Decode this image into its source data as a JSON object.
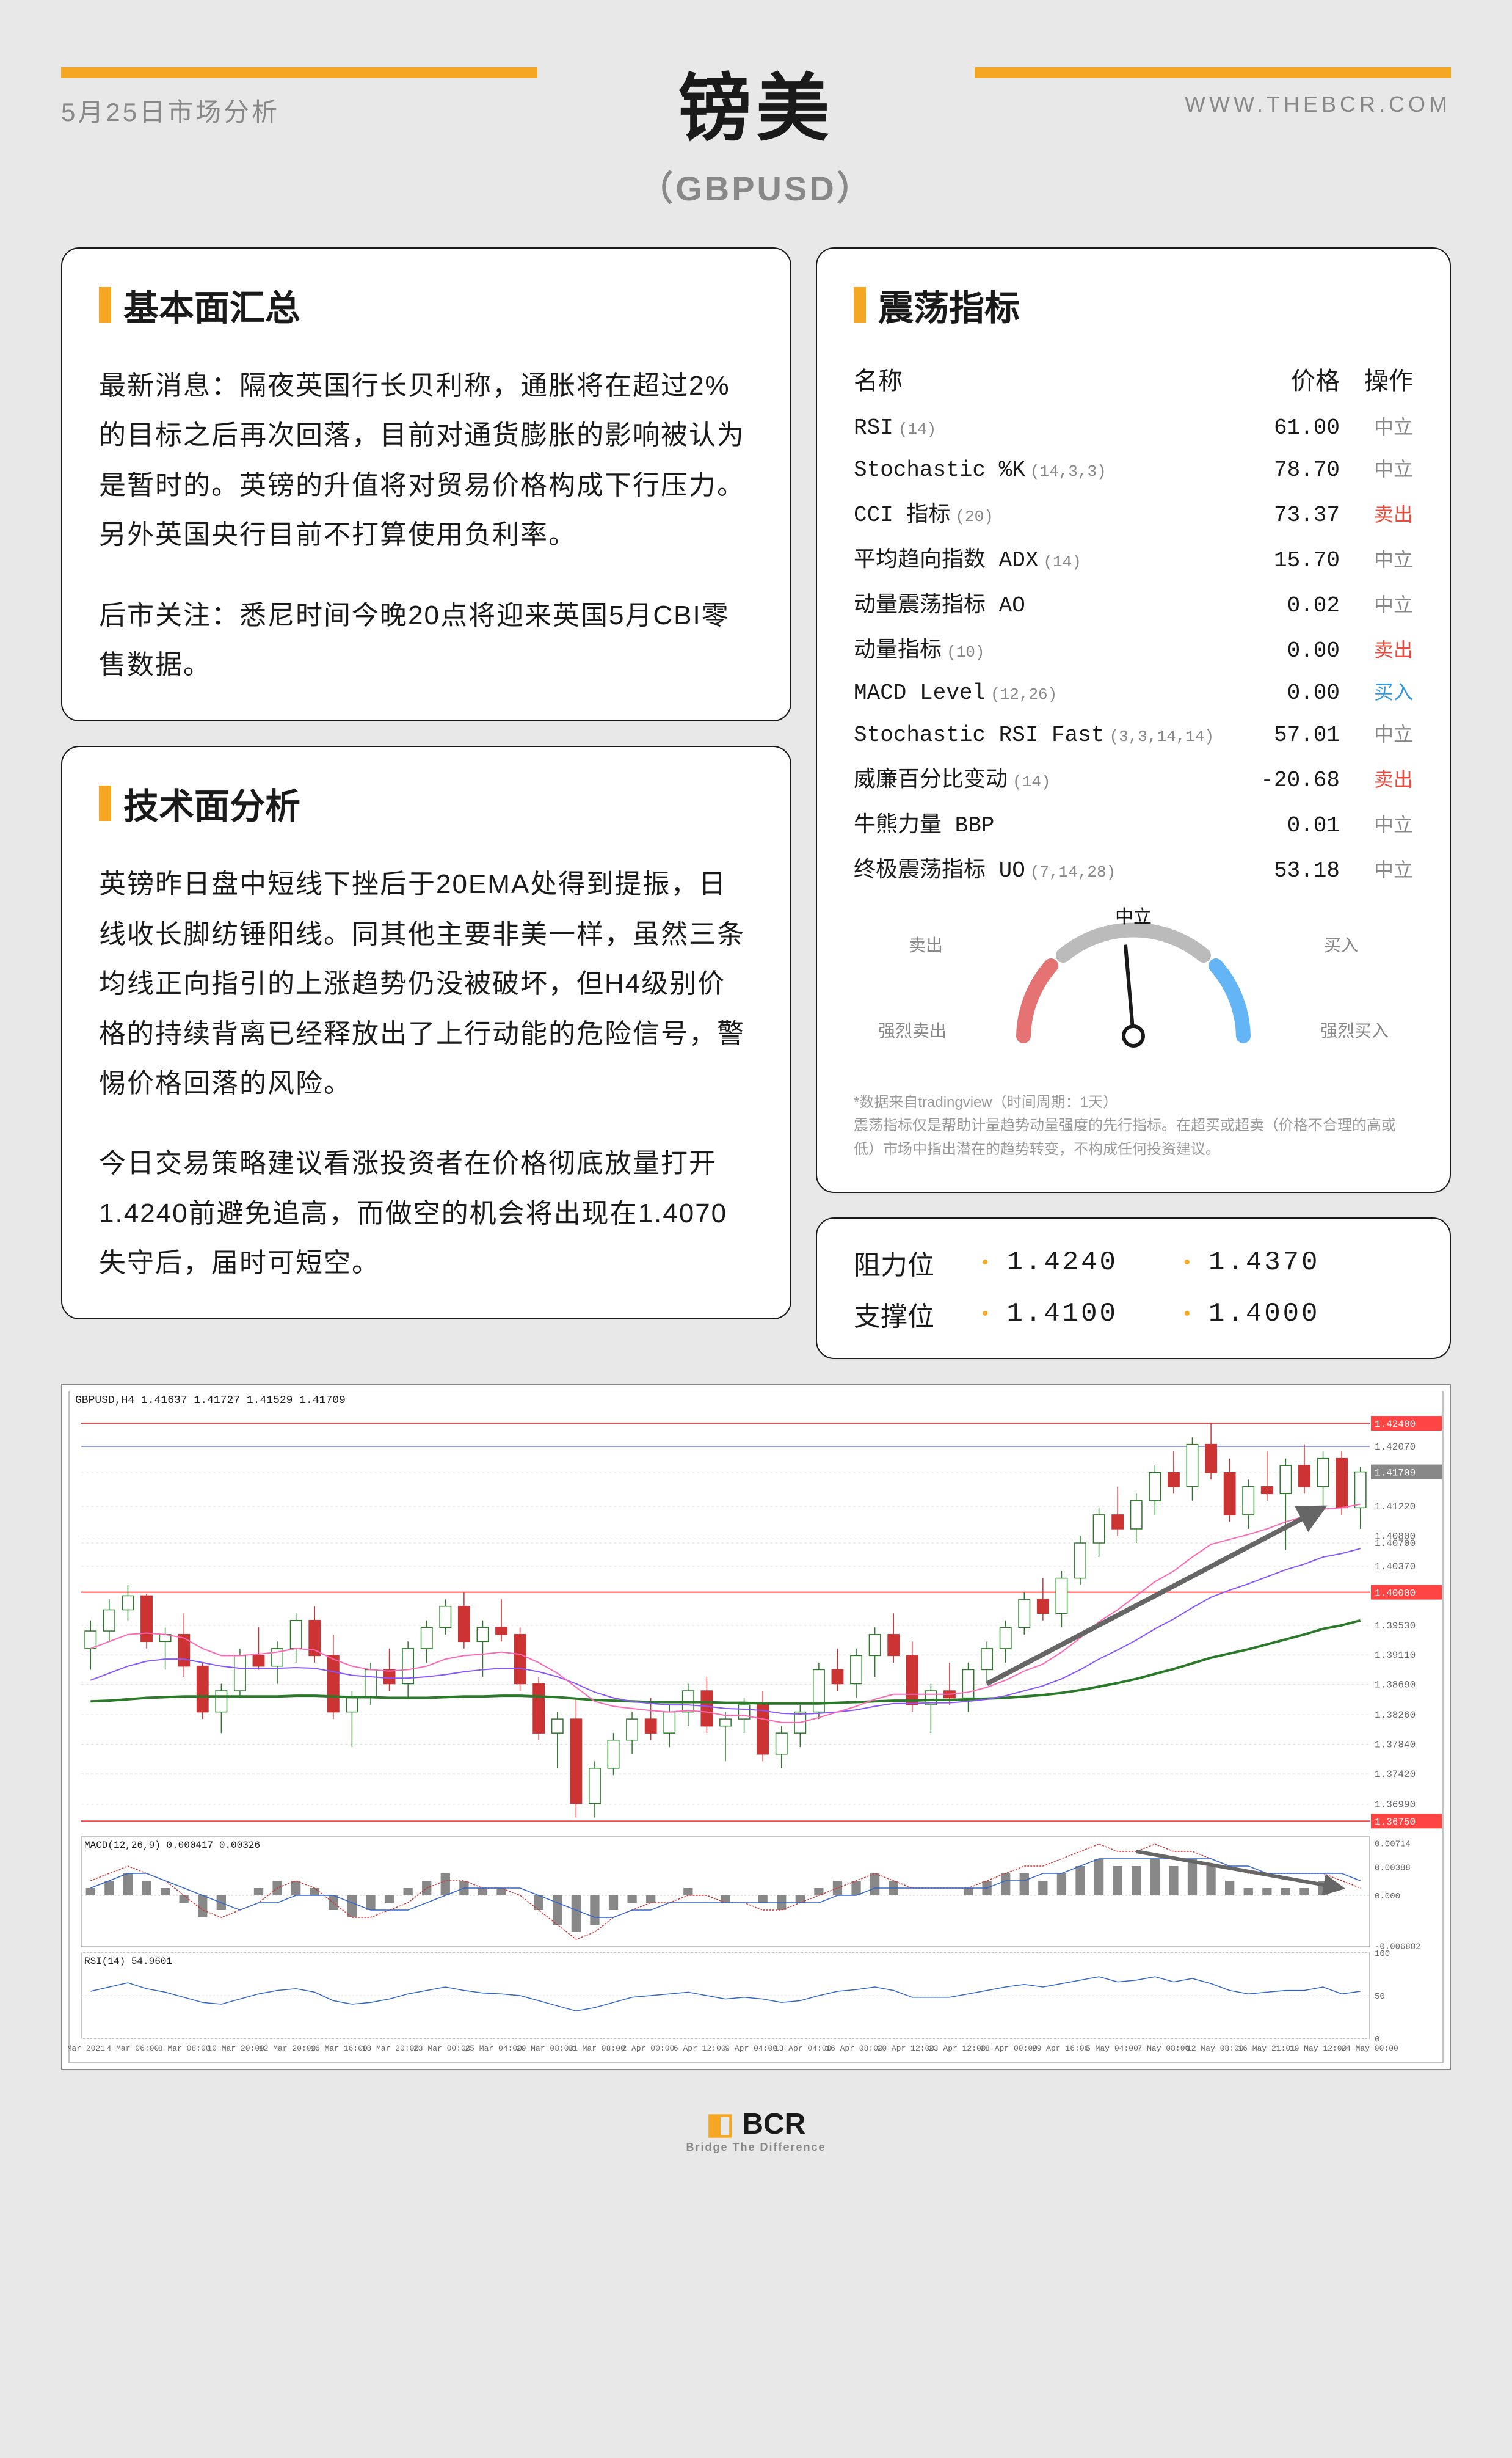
{
  "header": {
    "date": "5月25日市场分析",
    "url": "WWW.THEBCR.COM",
    "title": "镑美",
    "subtitle": "（GBPUSD）"
  },
  "fundamental": {
    "title": "基本面汇总",
    "p1": "最新消息：隔夜英国行长贝利称，通胀将在超过2%的目标之后再次回落，目前对通货膨胀的影响被认为是暂时的。英镑的升值将对贸易价格构成下行压力。另外英国央行目前不打算使用负利率。",
    "p2": "后市关注：悉尼时间今晚20点将迎来英国5月CBI零售数据。"
  },
  "technical": {
    "title": "技术面分析",
    "p1": "英镑昨日盘中短线下挫后于20EMA处得到提振，日线收长脚纺锤阳线。同其他主要非美一样，虽然三条均线正向指引的上涨趋势仍没被破坏，但H4级别价格的持续背离已经释放出了上行动能的危险信号，警惕价格回落的风险。",
    "p2": "今日交易策略建议看涨投资者在价格彻底放量打开1.4240前避免追高，而做空的机会将出现在1.4070失守后，届时可短空。"
  },
  "oscillator": {
    "title": "震荡指标",
    "header_name": "名称",
    "header_price": "价格",
    "header_action": "操作",
    "rows": [
      {
        "name": "RSI",
        "param": "(14)",
        "price": "61.00",
        "action": "中立",
        "class": "act-neutral"
      },
      {
        "name": "Stochastic %K",
        "param": "(14,3,3)",
        "price": "78.70",
        "action": "中立",
        "class": "act-neutral"
      },
      {
        "name": "CCI 指标",
        "param": "(20)",
        "price": "73.37",
        "action": "卖出",
        "class": "act-sell"
      },
      {
        "name": "平均趋向指数 ADX",
        "param": "(14)",
        "price": "15.70",
        "action": "中立",
        "class": "act-neutral"
      },
      {
        "name": "动量震荡指标 AO",
        "param": "",
        "price": "0.02",
        "action": "中立",
        "class": "act-neutral"
      },
      {
        "name": "动量指标",
        "param": "(10)",
        "price": "0.00",
        "action": "卖出",
        "class": "act-sell"
      },
      {
        "name": "MACD Level",
        "param": "(12,26)",
        "price": "0.00",
        "action": "买入",
        "class": "act-buy"
      },
      {
        "name": "Stochastic RSI Fast",
        "param": "(3,3,14,14)",
        "price": "57.01",
        "action": "中立",
        "class": "act-neutral"
      },
      {
        "name": "威廉百分比变动",
        "param": "(14)",
        "price": "-20.68",
        "action": "卖出",
        "class": "act-sell"
      },
      {
        "name": "牛熊力量 BBP",
        "param": "",
        "price": "0.01",
        "action": "中立",
        "class": "act-neutral"
      },
      {
        "name": "终极震荡指标 UO",
        "param": "(7,14,28)",
        "price": "53.18",
        "action": "中立",
        "class": "act-neutral"
      }
    ],
    "gauge": {
      "neutral": "中立",
      "sell": "卖出",
      "buy": "买入",
      "strong_sell": "强烈卖出",
      "strong_buy": "强烈买入",
      "colors": {
        "sell": "#e57373",
        "neutral": "#bbbbbb",
        "buy": "#64b5f6"
      },
      "needle_angle": -5
    },
    "disclaimer1": "*数据来自tradingview（时间周期：1天）",
    "disclaimer2": "震荡指标仅是帮助计量趋势动量强度的先行指标。在超买或超卖（价格不合理的高或低）市场中指出潜在的趋势转变，不构成任何投资建议。"
  },
  "levels": {
    "resistance_label": "阻力位",
    "support_label": "支撑位",
    "r1": "1.4240",
    "r2": "1.4370",
    "s1": "1.4100",
    "s2": "1.4000"
  },
  "chart": {
    "symbol_info": "GBPUSD,H4  1.41637 1.41727 1.41529 1.41709",
    "macd_label": "MACD(12,26,9) 0.000417 0.00326",
    "rsi_label": "RSI(14) 54.9601",
    "y_labels": [
      "1.42400",
      "1.42070",
      "1.41709",
      "1.41220",
      "1.40800",
      "1.40700",
      "1.40370",
      "1.40000",
      "1.39530",
      "1.39110",
      "1.38690",
      "1.38260",
      "1.37840",
      "1.37420",
      "1.36990",
      "1.36750"
    ],
    "macd_y": [
      "0.00714",
      "0.00388",
      "0.000",
      "-0.006882"
    ],
    "rsi_y": [
      "100",
      "50",
      "0"
    ],
    "x_labels": [
      "1 Mar 2021",
      "4 Mar 06:00",
      "8 Mar 08:00",
      "10 Mar 20:00",
      "12 Mar 20:00",
      "16 Mar 16:00",
      "18 Mar 20:00",
      "23 Mar 00:00",
      "25 Mar 04:00",
      "29 Mar 08:00",
      "31 Mar 08:00",
      "2 Apr 00:00",
      "6 Apr 12:00",
      "9 Apr 04:00",
      "13 Apr 04:00",
      "16 Apr 08:00",
      "20 Apr 12:00",
      "23 Apr 12:00",
      "28 Apr 00:00",
      "29 Apr 16:00",
      "5 May 04:00",
      "7 May 08:00",
      "12 May 08:00",
      "16 May 21:01",
      "19 May 12:00",
      "24 May 00:00"
    ],
    "colors": {
      "resistance": "#ff4444",
      "support": "#4466ff",
      "ema_fast": "#ff66b3",
      "ema_mid": "#8855ff",
      "ema_slow": "#2a7a2a",
      "candle_up": "#2a7a2a",
      "candle_down": "#cc3333",
      "grid": "#dddddd",
      "arrow": "#666666"
    },
    "price_range": [
      1.367,
      1.426
    ],
    "candles": [
      [
        1.392,
        1.396,
        1.389,
        1.3945,
        1
      ],
      [
        1.3945,
        1.399,
        1.393,
        1.3975,
        1
      ],
      [
        1.3975,
        1.401,
        1.396,
        1.3995,
        1
      ],
      [
        1.3995,
        1.3998,
        1.392,
        1.393,
        -1
      ],
      [
        1.393,
        1.395,
        1.389,
        1.394,
        1
      ],
      [
        1.394,
        1.397,
        1.388,
        1.3895,
        -1
      ],
      [
        1.3895,
        1.39,
        1.382,
        1.383,
        -1
      ],
      [
        1.383,
        1.387,
        1.38,
        1.386,
        1
      ],
      [
        1.386,
        1.392,
        1.385,
        1.391,
        1
      ],
      [
        1.391,
        1.395,
        1.389,
        1.3895,
        -1
      ],
      [
        1.3895,
        1.393,
        1.387,
        1.392,
        1
      ],
      [
        1.392,
        1.397,
        1.39,
        1.396,
        1
      ],
      [
        1.396,
        1.398,
        1.39,
        1.391,
        -1
      ],
      [
        1.391,
        1.394,
        1.382,
        1.383,
        -1
      ],
      [
        1.383,
        1.386,
        1.378,
        1.385,
        1
      ],
      [
        1.385,
        1.39,
        1.384,
        1.389,
        1
      ],
      [
        1.389,
        1.392,
        1.386,
        1.387,
        -1
      ],
      [
        1.387,
        1.393,
        1.385,
        1.392,
        1
      ],
      [
        1.392,
        1.396,
        1.39,
        1.395,
        1
      ],
      [
        1.395,
        1.399,
        1.394,
        1.398,
        1
      ],
      [
        1.398,
        1.4,
        1.392,
        1.393,
        -1
      ],
      [
        1.393,
        1.396,
        1.388,
        1.395,
        1
      ],
      [
        1.395,
        1.399,
        1.393,
        1.394,
        -1
      ],
      [
        1.394,
        1.395,
        1.386,
        1.387,
        -1
      ],
      [
        1.387,
        1.388,
        1.379,
        1.38,
        -1
      ],
      [
        1.38,
        1.383,
        1.375,
        1.382,
        1
      ],
      [
        1.382,
        1.385,
        1.368,
        1.37,
        -1
      ],
      [
        1.37,
        1.376,
        1.368,
        1.375,
        1
      ],
      [
        1.375,
        1.38,
        1.374,
        1.379,
        1
      ],
      [
        1.379,
        1.383,
        1.377,
        1.382,
        1
      ],
      [
        1.382,
        1.385,
        1.379,
        1.38,
        -1
      ],
      [
        1.38,
        1.384,
        1.378,
        1.383,
        1
      ],
      [
        1.383,
        1.387,
        1.381,
        1.386,
        1
      ],
      [
        1.386,
        1.388,
        1.38,
        1.381,
        -1
      ],
      [
        1.381,
        1.383,
        1.376,
        1.382,
        1
      ],
      [
        1.382,
        1.385,
        1.38,
        1.384,
        1
      ],
      [
        1.384,
        1.386,
        1.376,
        1.377,
        -1
      ],
      [
        1.377,
        1.381,
        1.375,
        1.38,
        1
      ],
      [
        1.38,
        1.384,
        1.378,
        1.383,
        1
      ],
      [
        1.383,
        1.39,
        1.382,
        1.389,
        1
      ],
      [
        1.389,
        1.392,
        1.386,
        1.387,
        -1
      ],
      [
        1.387,
        1.392,
        1.385,
        1.391,
        1
      ],
      [
        1.391,
        1.395,
        1.388,
        1.394,
        1
      ],
      [
        1.394,
        1.397,
        1.39,
        1.391,
        -1
      ],
      [
        1.391,
        1.393,
        1.383,
        1.384,
        -1
      ],
      [
        1.384,
        1.387,
        1.38,
        1.386,
        1
      ],
      [
        1.386,
        1.39,
        1.384,
        1.385,
        -1
      ],
      [
        1.385,
        1.39,
        1.383,
        1.389,
        1
      ],
      [
        1.389,
        1.393,
        1.387,
        1.392,
        1
      ],
      [
        1.392,
        1.396,
        1.39,
        1.395,
        1
      ],
      [
        1.395,
        1.4,
        1.394,
        1.399,
        1
      ],
      [
        1.399,
        1.402,
        1.396,
        1.397,
        -1
      ],
      [
        1.397,
        1.403,
        1.395,
        1.402,
        1
      ],
      [
        1.402,
        1.408,
        1.401,
        1.407,
        1
      ],
      [
        1.407,
        1.412,
        1.405,
        1.411,
        1
      ],
      [
        1.411,
        1.415,
        1.408,
        1.409,
        -1
      ],
      [
        1.409,
        1.414,
        1.407,
        1.413,
        1
      ],
      [
        1.413,
        1.418,
        1.411,
        1.417,
        1
      ],
      [
        1.417,
        1.42,
        1.414,
        1.415,
        -1
      ],
      [
        1.415,
        1.422,
        1.413,
        1.421,
        1
      ],
      [
        1.421,
        1.424,
        1.416,
        1.417,
        -1
      ],
      [
        1.417,
        1.419,
        1.41,
        1.411,
        -1
      ],
      [
        1.411,
        1.416,
        1.409,
        1.415,
        1
      ],
      [
        1.415,
        1.42,
        1.413,
        1.414,
        -1
      ],
      [
        1.414,
        1.419,
        1.406,
        1.418,
        1
      ],
      [
        1.418,
        1.421,
        1.414,
        1.415,
        -1
      ],
      [
        1.415,
        1.42,
        1.412,
        1.419,
        1
      ],
      [
        1.419,
        1.42,
        1.411,
        1.412,
        -1
      ],
      [
        1.412,
        1.4178,
        1.409,
        1.4171,
        1
      ]
    ],
    "ema20": [
      1.392,
      1.393,
      1.394,
      1.3942,
      1.394,
      1.3935,
      1.392,
      1.391,
      1.391,
      1.3912,
      1.3915,
      1.392,
      1.3918,
      1.3905,
      1.3895,
      1.389,
      1.3888,
      1.389,
      1.3895,
      1.3905,
      1.391,
      1.3912,
      1.3915,
      1.3912,
      1.39,
      1.3885,
      1.3865,
      1.3845,
      1.3838,
      1.3835,
      1.3832,
      1.383,
      1.3832,
      1.383,
      1.3825,
      1.3825,
      1.382,
      1.3815,
      1.3815,
      1.3822,
      1.383,
      1.3838,
      1.3848,
      1.3855,
      1.3855,
      1.3855,
      1.3855,
      1.3858,
      1.3865,
      1.3875,
      1.3888,
      1.3898,
      1.3915,
      1.3935,
      1.3958,
      1.3975,
      1.3995,
      1.4015,
      1.403,
      1.405,
      1.4068,
      1.4075,
      1.4082,
      1.409,
      1.41,
      1.4108,
      1.4118,
      1.412,
      1.4125
    ],
    "ema50": [
      1.3875,
      1.3885,
      1.3895,
      1.3902,
      1.3905,
      1.3905,
      1.39,
      1.3895,
      1.3892,
      1.3892,
      1.3892,
      1.3893,
      1.3892,
      1.3887,
      1.3882,
      1.388,
      1.3878,
      1.3878,
      1.388,
      1.3883,
      1.3887,
      1.389,
      1.3892,
      1.3892,
      1.3887,
      1.388,
      1.387,
      1.3858,
      1.385,
      1.3845,
      1.3842,
      1.384,
      1.384,
      1.3838,
      1.3835,
      1.3834,
      1.3832,
      1.3828,
      1.3827,
      1.3828,
      1.383,
      1.3833,
      1.3838,
      1.3842,
      1.3842,
      1.3843,
      1.3843,
      1.3845,
      1.3848,
      1.3853,
      1.386,
      1.3867,
      1.3877,
      1.389,
      1.3905,
      1.3918,
      1.3932,
      1.3948,
      1.3962,
      1.3978,
      1.3993,
      1.4003,
      1.4012,
      1.4022,
      1.4032,
      1.404,
      1.405,
      1.4055,
      1.4062
    ],
    "ema200": [
      1.3845,
      1.3846,
      1.3848,
      1.385,
      1.3851,
      1.3852,
      1.3852,
      1.3852,
      1.3852,
      1.3852,
      1.3852,
      1.3853,
      1.3853,
      1.3852,
      1.3851,
      1.3851,
      1.385,
      1.385,
      1.385,
      1.3851,
      1.3852,
      1.3852,
      1.3853,
      1.3853,
      1.3852,
      1.3851,
      1.3849,
      1.3847,
      1.3846,
      1.3845,
      1.3844,
      1.3844,
      1.3844,
      1.3844,
      1.3843,
      1.3843,
      1.3842,
      1.3842,
      1.3842,
      1.3842,
      1.3843,
      1.3844,
      1.3845,
      1.3846,
      1.3846,
      1.3847,
      1.3847,
      1.3848,
      1.3849,
      1.385,
      1.3852,
      1.3854,
      1.3857,
      1.3861,
      1.3866,
      1.3871,
      1.3877,
      1.3884,
      1.3891,
      1.3899,
      1.3907,
      1.3913,
      1.3919,
      1.3926,
      1.3933,
      1.394,
      1.3948,
      1.3953,
      1.396
    ],
    "macd_hist": [
      0.001,
      0.002,
      0.003,
      0.002,
      0.001,
      -0.001,
      -0.003,
      -0.002,
      0.0,
      0.001,
      0.002,
      0.002,
      0.001,
      -0.002,
      -0.003,
      -0.002,
      -0.001,
      0.001,
      0.002,
      0.003,
      0.002,
      0.001,
      0.001,
      0.0,
      -0.002,
      -0.004,
      -0.005,
      -0.004,
      -0.002,
      -0.001,
      -0.001,
      0.0,
      0.001,
      0.0,
      -0.001,
      0.0,
      -0.001,
      -0.002,
      -0.001,
      0.001,
      0.002,
      0.002,
      0.003,
      0.002,
      0.0,
      0.0,
      0.0,
      0.001,
      0.002,
      0.003,
      0.003,
      0.002,
      0.003,
      0.004,
      0.005,
      0.004,
      0.004,
      0.005,
      0.004,
      0.005,
      0.004,
      0.002,
      0.001,
      0.001,
      0.001,
      0.001,
      0.002,
      0.0,
      0.0
    ],
    "macd_line": [
      0.002,
      0.003,
      0.004,
      0.003,
      0.002,
      0.0,
      -0.002,
      -0.003,
      -0.002,
      -0.001,
      0.001,
      0.002,
      0.001,
      -0.001,
      -0.003,
      -0.003,
      -0.002,
      -0.001,
      0.001,
      0.002,
      0.002,
      0.001,
      0.001,
      0.0,
      -0.002,
      -0.004,
      -0.006,
      -0.005,
      -0.003,
      -0.002,
      -0.001,
      -0.001,
      0.0,
      0.0,
      -0.001,
      -0.001,
      -0.002,
      -0.002,
      -0.001,
      0.0,
      0.001,
      0.002,
      0.003,
      0.002,
      0.001,
      0.001,
      0.001,
      0.001,
      0.002,
      0.003,
      0.004,
      0.004,
      0.005,
      0.006,
      0.007,
      0.006,
      0.006,
      0.007,
      0.006,
      0.006,
      0.005,
      0.004,
      0.003,
      0.003,
      0.003,
      0.003,
      0.003,
      0.002,
      0.001
    ],
    "macd_signal": [
      0.001,
      0.002,
      0.003,
      0.003,
      0.002,
      0.001,
      0.0,
      -0.001,
      -0.002,
      -0.001,
      -0.001,
      0.0,
      0.0,
      0.0,
      -0.001,
      -0.002,
      -0.002,
      -0.002,
      -0.001,
      0.0,
      0.001,
      0.001,
      0.001,
      0.001,
      0.0,
      -0.001,
      -0.002,
      -0.003,
      -0.003,
      -0.002,
      -0.002,
      -0.001,
      -0.001,
      -0.001,
      -0.001,
      -0.001,
      -0.001,
      -0.001,
      -0.001,
      -0.001,
      0.0,
      0.0,
      0.001,
      0.001,
      0.001,
      0.001,
      0.001,
      0.001,
      0.001,
      0.002,
      0.002,
      0.003,
      0.003,
      0.004,
      0.005,
      0.005,
      0.005,
      0.005,
      0.005,
      0.005,
      0.005,
      0.004,
      0.004,
      0.003,
      0.003,
      0.003,
      0.003,
      0.003,
      0.002
    ],
    "rsi": [
      55,
      60,
      65,
      58,
      54,
      48,
      42,
      40,
      46,
      52,
      56,
      58,
      54,
      44,
      40,
      42,
      46,
      52,
      56,
      60,
      56,
      53,
      52,
      50,
      44,
      38,
      32,
      36,
      42,
      48,
      50,
      52,
      54,
      50,
      46,
      48,
      46,
      42,
      44,
      50,
      55,
      57,
      60,
      56,
      48,
      48,
      48,
      52,
      56,
      60,
      63,
      60,
      64,
      68,
      72,
      66,
      68,
      72,
      66,
      70,
      64,
      56,
      52,
      54,
      56,
      56,
      60,
      52,
      55
    ]
  },
  "footer": {
    "brand": "BCR",
    "tagline": "Bridge The Difference"
  }
}
